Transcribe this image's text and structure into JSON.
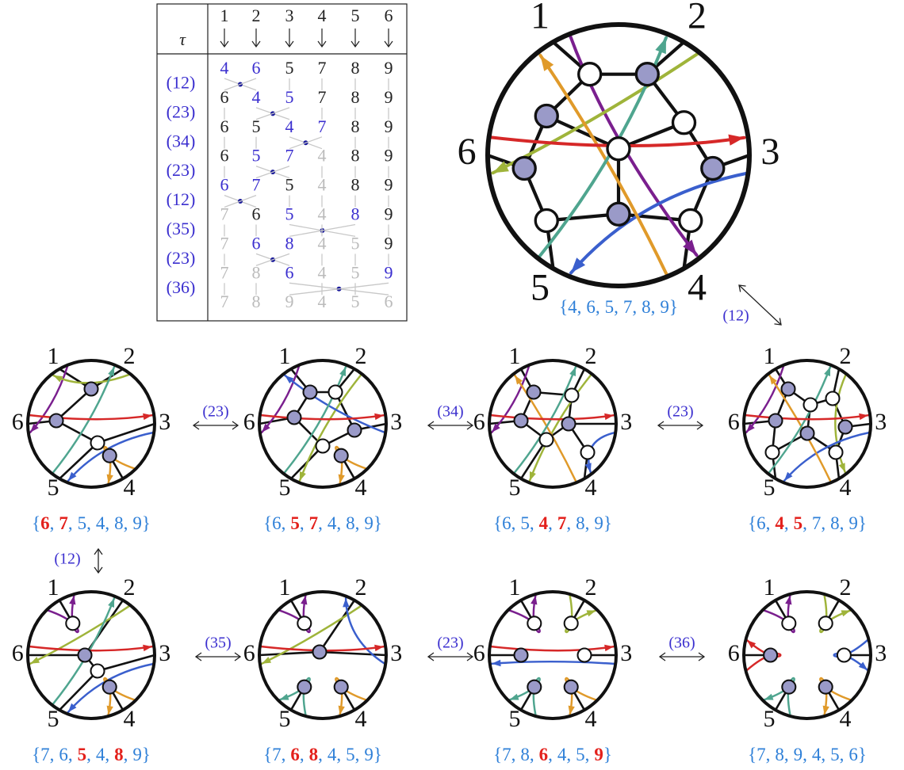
{
  "table": {
    "tau_header": "τ",
    "columns": [
      "1",
      "2",
      "3",
      "4",
      "5",
      "6"
    ],
    "rows": [
      {
        "values": [
          4,
          6,
          5,
          7,
          8,
          9
        ],
        "colors": [
          "#3b2fcf",
          "#3b2fcf",
          "#222222",
          "#222222",
          "#222222",
          "#222222"
        ]
      },
      {
        "tau": "(12)",
        "values": [
          6,
          4,
          5,
          7,
          8,
          9
        ],
        "colors": [
          "#222222",
          "#3b2fcf",
          "#3b2fcf",
          "#222222",
          "#222222",
          "#222222"
        ]
      },
      {
        "tau": "(23)",
        "values": [
          6,
          5,
          4,
          7,
          8,
          9
        ],
        "colors": [
          "#222222",
          "#222222",
          "#3b2fcf",
          "#3b2fcf",
          "#222222",
          "#222222"
        ]
      },
      {
        "tau": "(34)",
        "values": [
          6,
          5,
          7,
          4,
          8,
          9
        ],
        "colors": [
          "#222222",
          "#3b2fcf",
          "#3b2fcf",
          "#bbbbbb",
          "#222222",
          "#222222"
        ]
      },
      {
        "tau": "(23)",
        "values": [
          6,
          7,
          5,
          4,
          8,
          9
        ],
        "colors": [
          "#3b2fcf",
          "#3b2fcf",
          "#222222",
          "#bbbbbb",
          "#222222",
          "#222222"
        ]
      },
      {
        "tau": "(12)",
        "values": [
          7,
          6,
          5,
          4,
          8,
          9
        ],
        "colors": [
          "#bbbbbb",
          "#222222",
          "#3b2fcf",
          "#bbbbbb",
          "#3b2fcf",
          "#222222"
        ]
      },
      {
        "tau": "(35)",
        "values": [
          7,
          6,
          8,
          4,
          5,
          9
        ],
        "colors": [
          "#bbbbbb",
          "#3b2fcf",
          "#3b2fcf",
          "#bbbbbb",
          "#bbbbbb",
          "#222222"
        ]
      },
      {
        "tau": "(23)",
        "values": [
          7,
          8,
          6,
          4,
          5,
          9
        ],
        "colors": [
          "#bbbbbb",
          "#bbbbbb",
          "#3b2fcf",
          "#bbbbbb",
          "#bbbbbb",
          "#3b2fcf"
        ]
      },
      {
        "tau": "(36)",
        "values": [
          7,
          8,
          9,
          4,
          5,
          6
        ],
        "colors": [
          "#bbbbbb",
          "#bbbbbb",
          "#bbbbbb",
          "#bbbbbb",
          "#bbbbbb",
          "#bbbbbb"
        ]
      }
    ]
  },
  "boundary_labels": [
    "1",
    "2",
    "3",
    "4",
    "5",
    "6"
  ],
  "set_format": {
    "open": "{",
    "sep": ",",
    "close": "}"
  },
  "set_color": "#2f80d8",
  "highlight_color": "#e3211c",
  "tau_color": "#3b2fcf",
  "strand_colors": [
    "#7a1f8e",
    "#9fb43a",
    "#3a5fcd",
    "#e09a2a",
    "#4fa58f",
    "#d62828"
  ],
  "highlights": [
    [],
    [
      1,
      2
    ],
    [
      2,
      3
    ],
    [
      1,
      2
    ],
    [
      0,
      1
    ],
    [
      2,
      4
    ],
    [
      1,
      2
    ],
    [
      2,
      5
    ],
    []
  ]
}
